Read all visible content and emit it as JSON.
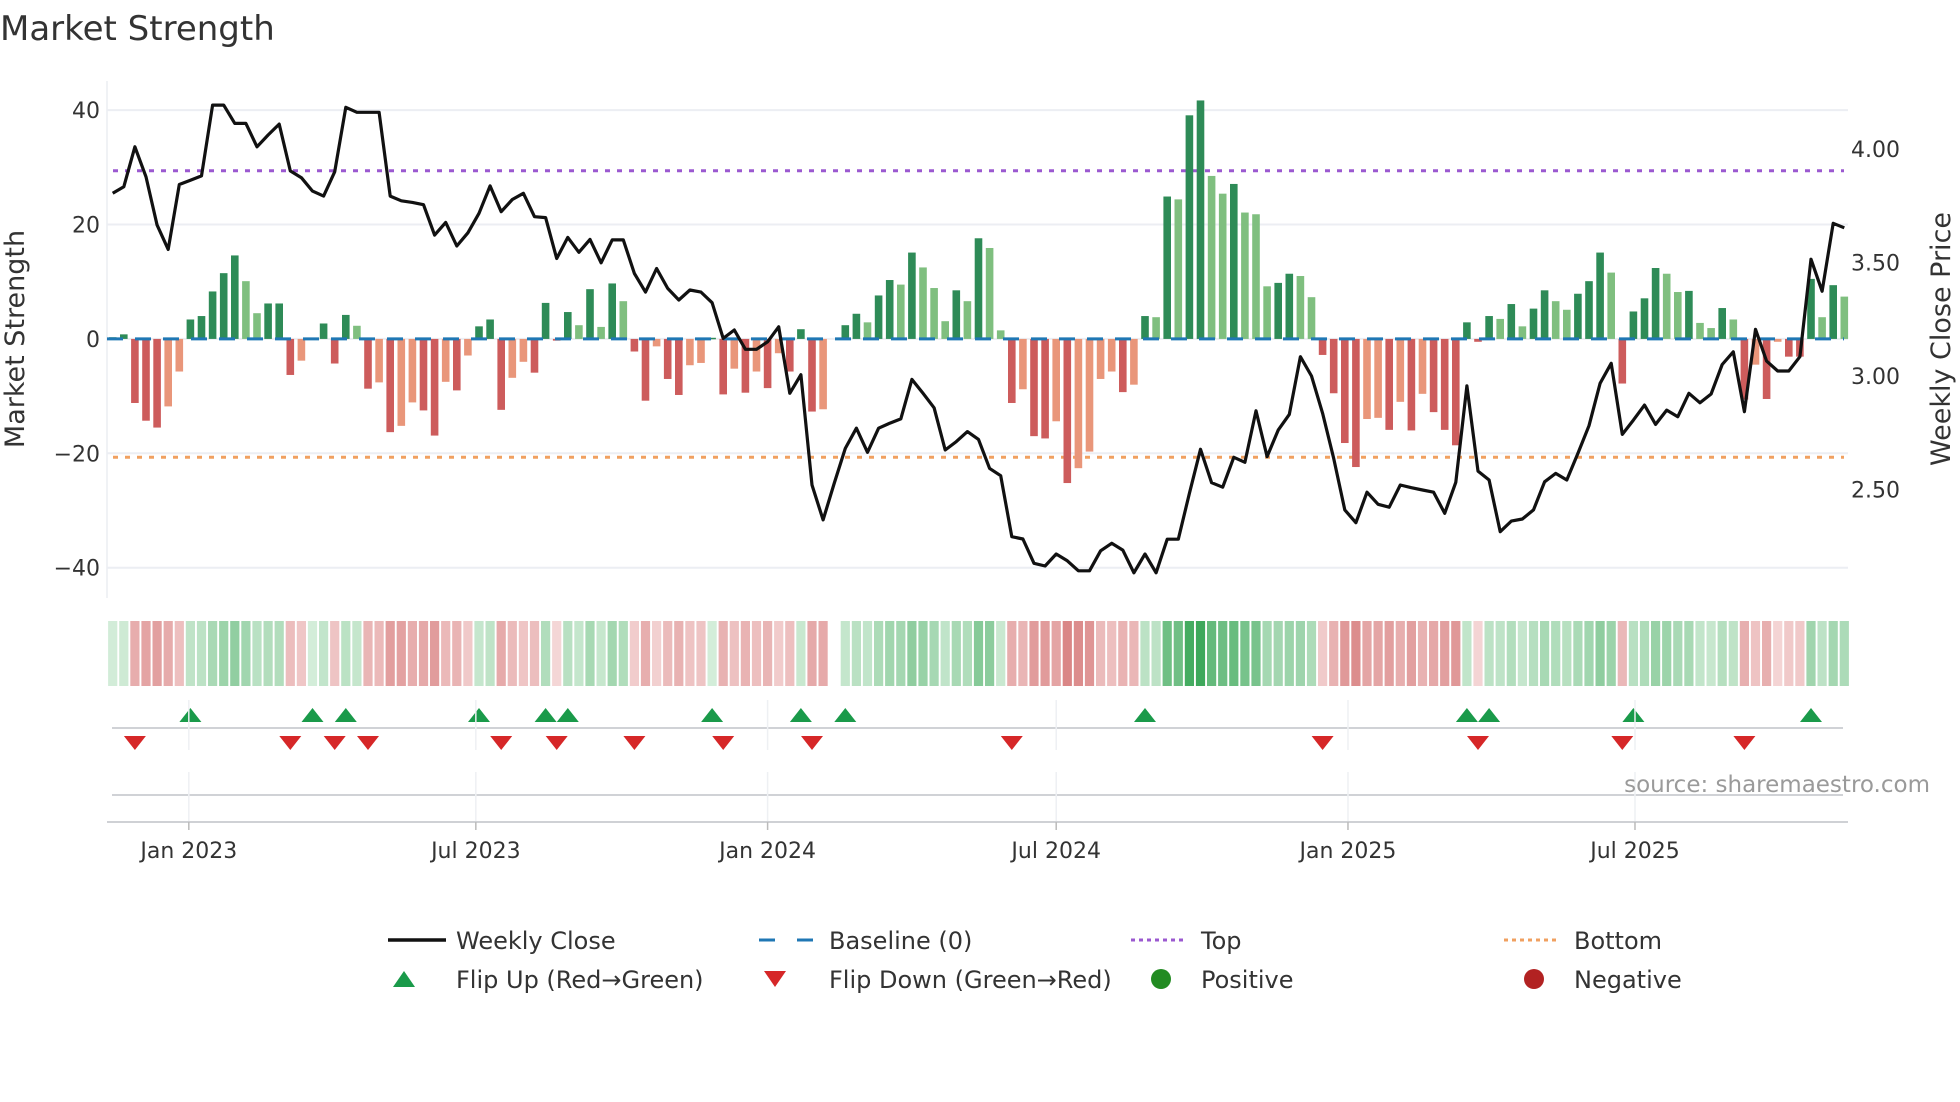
{
  "title": "Market Strength",
  "source": "source: sharemaestro.com",
  "colors": {
    "pos_rising": "#2e8b57",
    "pos_falling": "#7fbf7f",
    "neg_falling": "#cd5c5c",
    "neg_rising": "#e9967a",
    "baseline": "#1f77b4",
    "top": "#9b59d0",
    "bottom": "#f0a060",
    "close": "#111111",
    "flip_up": "#1a9a4a",
    "flip_down": "#d62728",
    "positive": "#228b22",
    "negative": "#b22222"
  },
  "legend": [
    {
      "key": "close",
      "label": "Weekly Close"
    },
    {
      "key": "baseline",
      "label": "Baseline (0)"
    },
    {
      "key": "top",
      "label": "Top"
    },
    {
      "key": "bottom",
      "label": "Bottom"
    },
    {
      "key": "flip_up",
      "label": "Flip Up (Red→Green)"
    },
    {
      "key": "flip_down",
      "label": "Flip Down (Green→Red)"
    },
    {
      "key": "positive",
      "label": "Positive"
    },
    {
      "key": "negative",
      "label": "Negative"
    }
  ],
  "chart_data": {
    "type": "bar",
    "title": "Market Strength",
    "start_date": "2022-11-14",
    "frequency": "weekly",
    "ylabel": "Market Strength",
    "y2label": "Weekly Close Price",
    "ylim": [
      -45.3,
      45.1
    ],
    "y2lim": [
      2.022,
      4.3
    ],
    "yticks": [
      "40",
      "20",
      "0",
      "−20",
      "−40"
    ],
    "ytick_values": [
      40,
      20,
      0,
      -20,
      -40
    ],
    "y2ticks": [
      "4.00",
      "3.50",
      "3.00",
      "2.50"
    ],
    "y2tick_values": [
      4.0,
      3.5,
      3.0,
      2.5
    ],
    "xticks": [
      {
        "date": "2023-01-01",
        "label": "Jan 2023"
      },
      {
        "date": "2023-07-01",
        "label": "Jul 2023"
      },
      {
        "date": "2024-01-01",
        "label": "Jan 2024"
      },
      {
        "date": "2024-07-01",
        "label": "Jul 2024"
      },
      {
        "date": "2025-01-01",
        "label": "Jan 2025"
      },
      {
        "date": "2025-07-01",
        "label": "Jul 2025"
      }
    ],
    "top_level": 29.4,
    "bottom_level": -20.7,
    "baseline": 0,
    "strength": [
      0.3,
      0.8,
      -11.2,
      -14.3,
      -15.5,
      -11.8,
      -5.7,
      3.4,
      4.0,
      8.3,
      11.5,
      14.6,
      10.1,
      4.5,
      6.2,
      6.2,
      -6.3,
      -3.8,
      0.2,
      2.7,
      -4.3,
      4.2,
      2.3,
      -8.7,
      -7.6,
      -16.3,
      -15.2,
      -11.1,
      -12.5,
      -16.9,
      -7.5,
      -9.0,
      -2.9,
      2.2,
      3.4,
      -12.4,
      -6.8,
      -4.0,
      -5.9,
      6.3,
      -0.3,
      4.7,
      2.4,
      8.7,
      2.1,
      9.7,
      6.6,
      -2.2,
      -10.8,
      -1.3,
      -7.0,
      -9.8,
      -4.6,
      -4.2,
      0.2,
      -9.7,
      -5.2,
      -9.4,
      -5.7,
      -8.6,
      -2.5,
      -5.7,
      1.7,
      -12.7,
      -12.3,
      0,
      2.4,
      4.4,
      2.9,
      7.6,
      10.3,
      9.5,
      15.1,
      12.5,
      8.9,
      3.1,
      8.5,
      6.6,
      17.6,
      15.9,
      1.5,
      -11.2,
      -8.8,
      -17.0,
      -17.4,
      -14.4,
      -25.2,
      -22.6,
      -19.7,
      -7.0,
      -5.7,
      -9.3,
      -8.0,
      4.0,
      3.8,
      24.9,
      24.4,
      39.1,
      41.7,
      28.5,
      25.4,
      27.1,
      22.1,
      21.8,
      9.2,
      9.8,
      11.4,
      11.0,
      7.3,
      -2.8,
      -9.5,
      -18.2,
      -22.4,
      -14.0,
      -13.8,
      -15.9,
      -11.0,
      -16.0,
      -9.6,
      -12.8,
      -15.9,
      -18.6,
      2.9,
      -0.5,
      4.0,
      3.5,
      6.1,
      2.2,
      5.3,
      8.5,
      6.6,
      5.1,
      7.9,
      10.1,
      15.1,
      11.6,
      -7.8,
      4.8,
      7.1,
      12.4,
      11.4,
      8.2,
      8.4,
      2.8,
      1.9,
      5.4,
      3.4,
      -10.6,
      -4.5,
      -10.5,
      -0.5,
      -3.1,
      -3.1,
      10.5,
      3.8,
      9.4,
      7.4
    ],
    "close": [
      3.805,
      3.834,
      4.01,
      3.878,
      3.665,
      3.558,
      3.844,
      3.863,
      3.882,
      4.194,
      4.194,
      4.113,
      4.113,
      4.01,
      4.062,
      4.11,
      3.904,
      3.874,
      3.815,
      3.793,
      3.9,
      4.184,
      4.162,
      4.162,
      4.162,
      3.793,
      3.772,
      3.765,
      3.755,
      3.621,
      3.677,
      3.573,
      3.631,
      3.717,
      3.838,
      3.724,
      3.778,
      3.805,
      3.702,
      3.698,
      3.518,
      3.611,
      3.545,
      3.602,
      3.499,
      3.6,
      3.6,
      3.452,
      3.37,
      3.474,
      3.386,
      3.335,
      3.379,
      3.37,
      3.323,
      3.166,
      3.203,
      3.118,
      3.118,
      3.151,
      3.217,
      2.924,
      3.006,
      2.52,
      2.366,
      2.527,
      2.681,
      2.77,
      2.664,
      2.77,
      2.792,
      2.811,
      2.985,
      2.924,
      2.86,
      2.674,
      2.711,
      2.755,
      2.721,
      2.593,
      2.561,
      2.292,
      2.282,
      2.175,
      2.163,
      2.216,
      2.186,
      2.142,
      2.142,
      2.23,
      2.263,
      2.233,
      2.133,
      2.216,
      2.133,
      2.281,
      2.281,
      2.483,
      2.677,
      2.53,
      2.51,
      2.642,
      2.62,
      2.847,
      2.645,
      2.762,
      2.831,
      3.085,
      3.0,
      2.836,
      2.637,
      2.41,
      2.354,
      2.488,
      2.435,
      2.422,
      2.52,
      2.508,
      2.498,
      2.488,
      2.395,
      2.532,
      2.957,
      2.581,
      2.542,
      2.314,
      2.361,
      2.37,
      2.41,
      2.534,
      2.571,
      2.542,
      2.659,
      2.781,
      2.968,
      3.056,
      2.743,
      2.806,
      2.872,
      2.787,
      2.85,
      2.821,
      2.924,
      2.882,
      2.921,
      3.051,
      3.107,
      2.843,
      3.206,
      3.066,
      3.022,
      3.022,
      3.085,
      3.515,
      3.374,
      3.673,
      3.653
    ],
    "flip_up_weeks": [
      7,
      18,
      21,
      33,
      39,
      41,
      54,
      62,
      66,
      93,
      122,
      124,
      137,
      153
    ],
    "flip_down_weeks": [
      2,
      16,
      20,
      23,
      35,
      40,
      47,
      55,
      63,
      81,
      109,
      123,
      136,
      147
    ]
  }
}
